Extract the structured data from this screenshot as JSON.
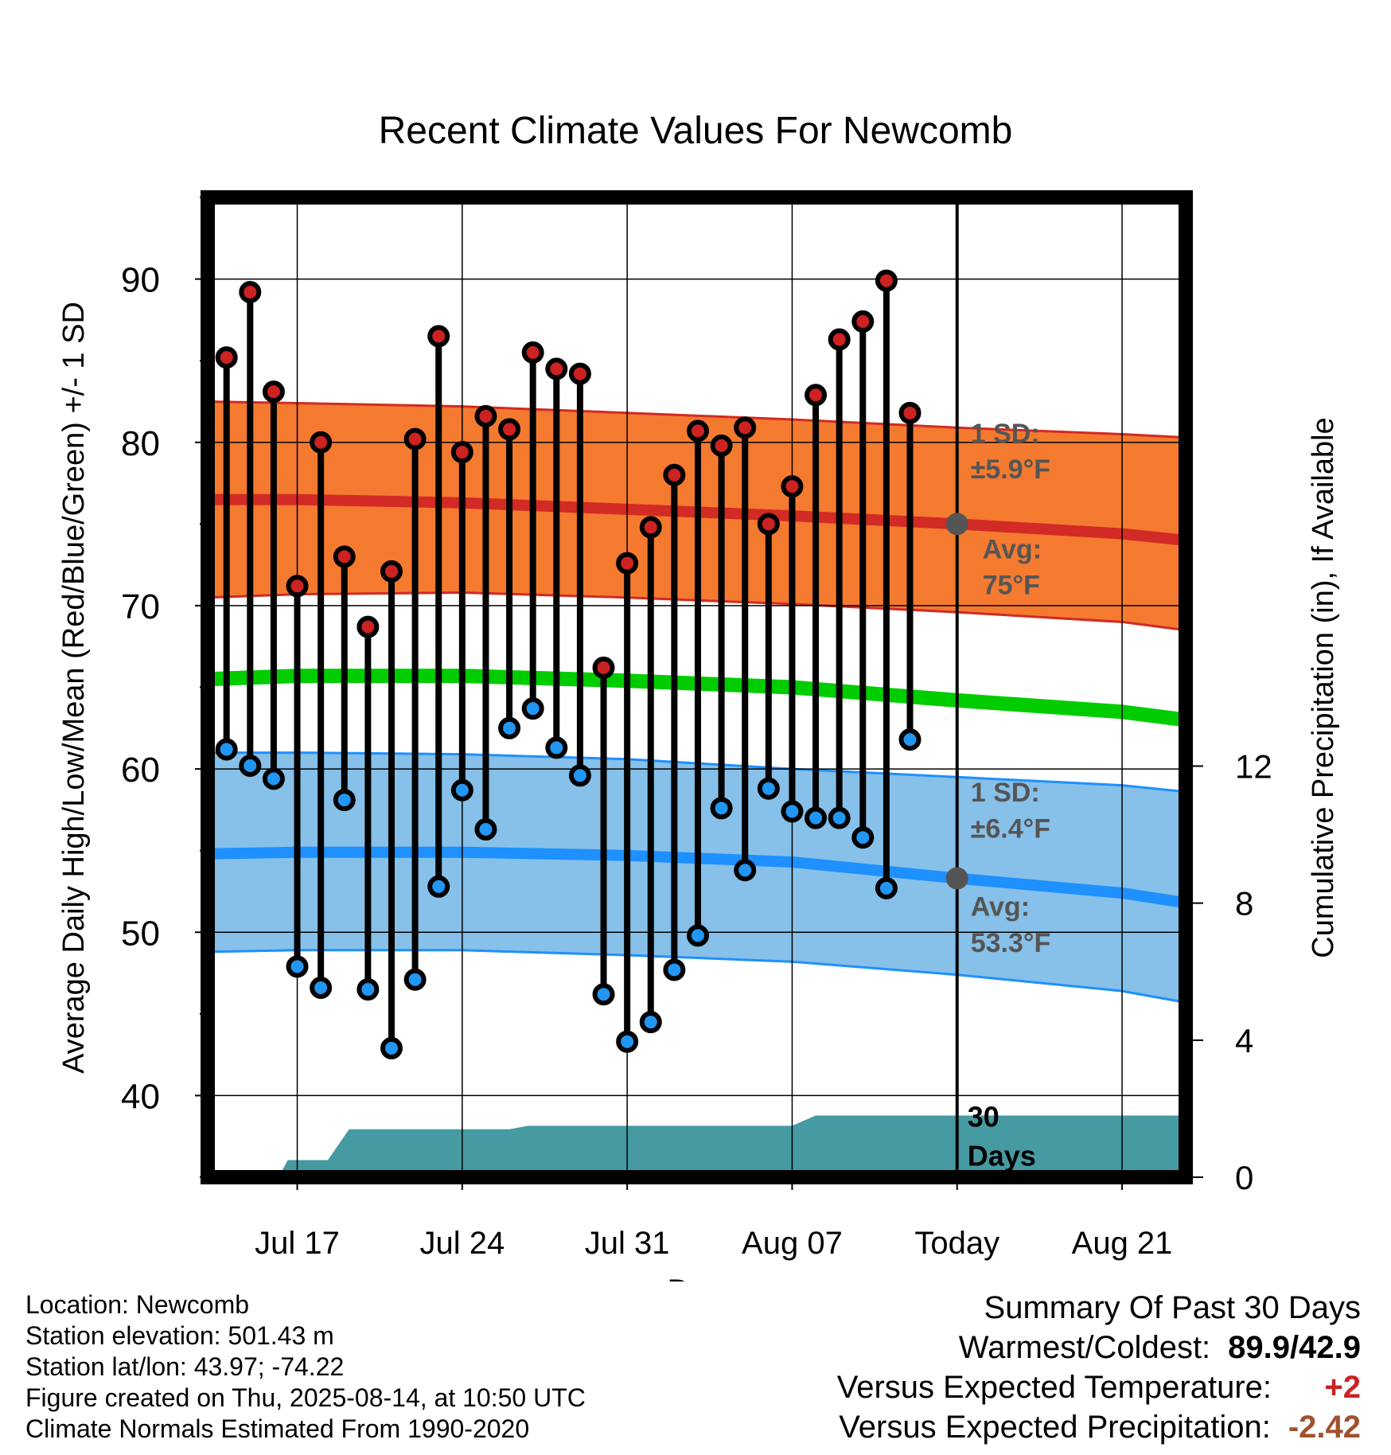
{
  "chart_data": {
    "type": "line",
    "title": "Recent Climate Values For Newcomb",
    "xlabel": "Day",
    "ylabel": "Average Daily High/Low/Mean (Red/Blue/Green) +/- 1 SD",
    "y2label": "Cumulative Precipitation (in), If Available",
    "ylim": [
      35,
      95
    ],
    "y2lim": [
      0,
      28.6
    ],
    "y_ticks": [
      "40",
      "50",
      "60",
      "70",
      "80",
      "90"
    ],
    "y2_ticks": [
      "0",
      "4",
      "8",
      "12"
    ],
    "x_tick_labels": [
      "Jul 17",
      "Jul 24",
      "Jul 31",
      "Aug 07",
      "Today",
      "Aug 21"
    ],
    "x_tick_days": [
      17,
      24,
      31,
      38,
      45,
      52
    ],
    "xlim": [
      13.2,
      54.7
    ],
    "today_day": 45,
    "grid": true,
    "days": [
      14,
      15,
      16,
      17,
      18,
      19,
      20,
      21,
      22,
      23,
      24,
      25,
      26,
      27,
      28,
      29,
      30,
      31,
      32,
      33,
      34,
      35,
      36,
      37,
      38,
      39,
      40,
      41,
      42,
      43,
      44
    ],
    "daily_high": [
      85.2,
      89.2,
      83.1,
      71.2,
      80.0,
      73.0,
      68.7,
      72.1,
      80.2,
      86.5,
      79.4,
      81.6,
      80.8,
      85.5,
      84.5,
      84.2,
      66.2,
      72.6,
      74.8,
      78.0,
      80.7,
      79.8,
      80.9,
      75.0,
      77.3,
      82.9,
      86.3,
      87.4,
      89.9,
      81.8,
      null
    ],
    "daily_low": [
      61.2,
      60.2,
      59.4,
      47.9,
      46.6,
      58.1,
      46.5,
      42.9,
      47.1,
      52.8,
      58.7,
      56.3,
      62.5,
      63.7,
      61.3,
      59.6,
      46.2,
      43.3,
      44.5,
      47.7,
      49.8,
      57.6,
      53.8,
      58.8,
      57.4,
      57.0,
      57.0,
      55.8,
      52.7,
      61.8,
      null
    ],
    "normals_x": [
      13.2,
      17,
      24,
      31,
      38,
      45,
      52,
      54.7
    ],
    "normal_high": [
      76.5,
      76.5,
      76.3,
      75.9,
      75.5,
      75.0,
      74.4,
      74.0
    ],
    "high_sd_upper": [
      82.5,
      82.4,
      82.2,
      81.8,
      81.4,
      80.9,
      80.5,
      80.3
    ],
    "high_sd_lower": [
      70.5,
      70.7,
      70.8,
      70.5,
      70.1,
      69.6,
      69.0,
      68.5
    ],
    "normal_mean": [
      65.5,
      65.7,
      65.7,
      65.4,
      65.0,
      64.2,
      63.5,
      63.0
    ],
    "normal_low": [
      54.8,
      54.9,
      54.9,
      54.7,
      54.3,
      53.3,
      52.4,
      51.8
    ],
    "low_sd_upper": [
      61.0,
      61.0,
      60.9,
      60.6,
      60.0,
      59.5,
      59.0,
      58.6
    ],
    "low_sd_lower": [
      48.8,
      48.9,
      48.9,
      48.6,
      48.2,
      47.4,
      46.4,
      45.7
    ],
    "precip_x": [
      13.2,
      16.2,
      16.6,
      18.3,
      18.8,
      19.2,
      26.0,
      26.8,
      29.0,
      30.0,
      38.0,
      39.0,
      54.7
    ],
    "cumulative_precip": [
      0,
      0,
      0.5,
      0.5,
      1.0,
      1.4,
      1.4,
      1.5,
      1.5,
      1.5,
      1.5,
      1.8,
      1.8
    ],
    "annotations": {
      "high_sd_label": "1 SD:",
      "high_sd_value": "±5.9°F",
      "high_avg_label": "Avg:",
      "high_avg_value": "75°F",
      "low_sd_label": "1 SD:",
      "low_sd_value": "±6.4°F",
      "low_avg_label": "Avg:",
      "low_avg_value": "53.3°F",
      "days_num": "30",
      "days_word": "Days"
    },
    "today_high_avg": 75.0,
    "today_low_avg": 53.3,
    "colors": {
      "high_band": "#f47a30",
      "high_line": "#d22a24",
      "low_band": "#87c0e8",
      "low_line": "#1e90ff",
      "mean_line": "#00cc00",
      "precip": "#469aa2",
      "high_dot": "#cc2222",
      "low_dot": "#2196f3",
      "annotation": "#555555"
    }
  },
  "info": {
    "location": "Location: Newcomb",
    "elevation": "Station elevation: 501.43 m",
    "latlon": "Station lat/lon: 43.97; -74.22",
    "created": "Figure created on Thu, 2025-08-14, at 10:50 UTC",
    "normals": "Climate Normals Estimated From 1990-2020"
  },
  "summary": {
    "title": "Summary Of Past 30 Days",
    "warm_cold_label": "Warmest/Coldest:",
    "warm_cold_value": "89.9/42.9",
    "vs_temp_label": "Versus Expected Temperature:",
    "vs_temp_value": "+2",
    "vs_precip_label": "Versus Expected Precipitation:",
    "vs_precip_value": "-2.42"
  }
}
